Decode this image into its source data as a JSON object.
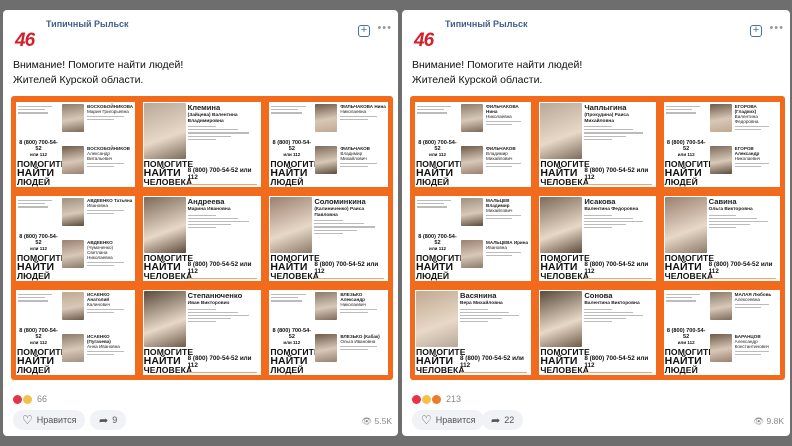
{
  "posts": [
    {
      "author": "Типичный Рыльск",
      "logo": "46",
      "text_lines": [
        "Внимание! Помогите найти людей!",
        "Жителей Курской области."
      ],
      "reactions_count": "66",
      "reaction_emojis": [
        "heart",
        "smile"
      ],
      "like_label": "Нравится",
      "share_count": "9",
      "views": "5.5K",
      "posters": [
        {
          "type": "double",
          "persons": [
            {
              "name": "ВОСКОБОЙНИКОВА",
              "given": "Мария Григорьевна"
            },
            {
              "name": "ВОСКОБОЙНИКОВ",
              "given": "Александр Витальевич"
            }
          ]
        },
        {
          "type": "single",
          "name": "Клемина",
          "given": "(Зайцева) Валентина Владимировна"
        },
        {
          "type": "double",
          "persons": [
            {
              "name": "ФИЛЬЧАКОВА Нина",
              "given": "Николаевна"
            },
            {
              "name": "ФИЛЬЧАКОВ",
              "given": "Владимир Михайлович"
            }
          ]
        },
        {
          "type": "double",
          "persons": [
            {
              "name": "АВДЕЕНКО Татьяна",
              "given": "Ивановна"
            },
            {
              "name": "АВДЕЕНКО",
              "given": "(Чумаченко) Светлана Николаевна"
            }
          ]
        },
        {
          "type": "single",
          "name": "Андреева",
          "given": "Марина Ивановна"
        },
        {
          "type": "single",
          "name": "Соломинкина",
          "given": "(Калиниченко) Раиса Павловна"
        },
        {
          "type": "double",
          "persons": [
            {
              "name": "ИСАЕНКО Анатолий",
              "given": "Калинович"
            },
            {
              "name": "ИСАЕНКО (Пугачева)",
              "given": "Анна Ивановна"
            }
          ]
        },
        {
          "type": "single",
          "name": "Степанюченко",
          "given": "Иван Викторович"
        },
        {
          "type": "double",
          "persons": [
            {
              "name": "ВЛЕЗЬКО Александр",
              "given": "Николаевич"
            },
            {
              "name": "ВЛЕЗЬКО (Кабак)",
              "given": "Ольга Ивановна"
            }
          ]
        }
      ]
    },
    {
      "author": "Типичный Рыльск",
      "logo": "46",
      "text_lines": [
        "Внимание! Помогите найти людей!",
        "Жителей Курской области."
      ],
      "reactions_count": "213",
      "reaction_emojis": [
        "heart",
        "smile",
        "angry"
      ],
      "like_label": "Нравится",
      "share_count": "22",
      "views": "9.8K",
      "posters": [
        {
          "type": "double",
          "persons": [
            {
              "name": "ФИЛЬЧАКОВА Нина",
              "given": "Николаевна"
            },
            {
              "name": "ФИЛЬЧАКОВ",
              "given": "Владимир Михайлович"
            }
          ]
        },
        {
          "type": "single",
          "name": "Чаплыгина",
          "given": "(Прокудина) Раиса Михайловна"
        },
        {
          "type": "double",
          "persons": [
            {
              "name": "ЕГОРОВА (Гладких)",
              "given": "Валентина Федоровна"
            },
            {
              "name": "ЕГОРОВ Александр",
              "given": "Николаевич"
            }
          ]
        },
        {
          "type": "double",
          "persons": [
            {
              "name": "МАЛЬЦЕВ Владимир",
              "given": "Михайлович"
            },
            {
              "name": "МАЛЬЦЕВА Ирина",
              "given": "Ивановна"
            }
          ]
        },
        {
          "type": "single",
          "name": "Исакова",
          "given": "Валентина Федоровна"
        },
        {
          "type": "single",
          "name": "Савина",
          "given": "Ольга Викторовна"
        },
        {
          "type": "single",
          "name": "Васянина",
          "given": "Вера Михайловна"
        },
        {
          "type": "single",
          "name": "Сонова",
          "given": "Валентина Викторовна"
        },
        {
          "type": "double",
          "persons": [
            {
              "name": "МАЛАЯ Любовь",
              "given": "Алексеевна"
            },
            {
              "name": "БАРАНЦОВ",
              "given": "Александр Константинович"
            }
          ]
        }
      ]
    }
  ],
  "poster_text": {
    "help": "ПОМОГИТЕ",
    "find": "НАЙТИ",
    "person": "ЧЕЛОВЕКА",
    "people": "ЛЮДЕЙ",
    "phone_single": "8 (800) 700-54-52 или 112",
    "phone_double": "8 (800) 700-54-52",
    "or112": "или 112"
  },
  "colors": {
    "poster_orange": "#f26b1d",
    "author_blue": "#3f5f8a",
    "logo_red": "#d3202a"
  }
}
